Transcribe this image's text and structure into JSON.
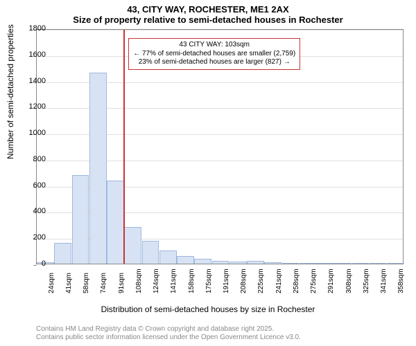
{
  "title_line1": "43, CITY WAY, ROCHESTER, ME1 2AX",
  "title_line2": "Size of property relative to semi-detached houses in Rochester",
  "yaxis_title": "Number of semi-detached properties",
  "xaxis_title": "Distribution of semi-detached houses by size in Rochester",
  "footer_line1": "Contains HM Land Registry data © Crown copyright and database right 2025.",
  "footer_line2": "Contains public sector information licensed under the Open Government Licence v3.0.",
  "annotation": {
    "line1": "43 CITY WAY: 103sqm",
    "line2": "← 77% of semi-detached houses are smaller (2,759)",
    "line3": "23% of semi-detached houses are larger (827) →"
  },
  "chart": {
    "type": "histogram",
    "ylim": [
      0,
      1800
    ],
    "ytick_step": 200,
    "x_categories": [
      "24sqm",
      "41sqm",
      "58sqm",
      "74sqm",
      "91sqm",
      "108sqm",
      "124sqm",
      "141sqm",
      "158sqm",
      "175sqm",
      "191sqm",
      "208sqm",
      "225sqm",
      "241sqm",
      "258sqm",
      "275sqm",
      "291sqm",
      "308sqm",
      "325sqm",
      "341sqm",
      "358sqm"
    ],
    "values": [
      10,
      160,
      680,
      1460,
      635,
      280,
      175,
      100,
      60,
      35,
      20,
      15,
      20,
      10,
      7,
      5,
      3,
      2,
      2,
      1,
      0
    ],
    "bar_fill": "#d7e3f4",
    "bar_stroke": "#9fb8dd",
    "grid_color": "#e0e0e0",
    "background": "#ffffff",
    "vline_color": "#c83232",
    "vline_category_index": 5,
    "annot_border": "#c83232"
  }
}
